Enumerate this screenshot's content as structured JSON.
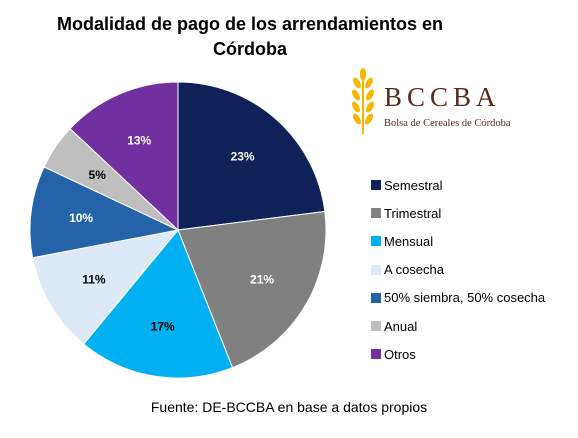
{
  "chart_data": {
    "type": "pie",
    "title_line1": "Modalidad de pago de los arrendamientos en",
    "title_line2": "Córdoba",
    "labels": [
      "Semestral",
      "Trimestral",
      "Mensual",
      "A cosecha",
      "50% siembra, 50% cosecha",
      "Anual",
      "Otros"
    ],
    "values": [
      23,
      21,
      17,
      11,
      10,
      5,
      13
    ],
    "value_labels": [
      "23%",
      "21%",
      "17%",
      "11%",
      "10%",
      "5%",
      "13%"
    ],
    "colors": [
      "#0e2259",
      "#808080",
      "#00b0f0",
      "#dde9f7",
      "#2563a8",
      "#bfbfbf",
      "#7030a0"
    ],
    "label_colors": [
      "#ffffff",
      "#ffffff",
      "#000000",
      "#000000",
      "#ffffff",
      "#000000",
      "#ffffff"
    ],
    "legend_position": "right"
  },
  "logo": {
    "name": "BCCBA",
    "subtitle": "Bolsa de Cereales de Córdoba",
    "color": "#5a2a1c",
    "icon": "wheat-icon",
    "icon_color": "#f5b800"
  },
  "source": "Fuente: DE-BCCBA en base a datos propios"
}
